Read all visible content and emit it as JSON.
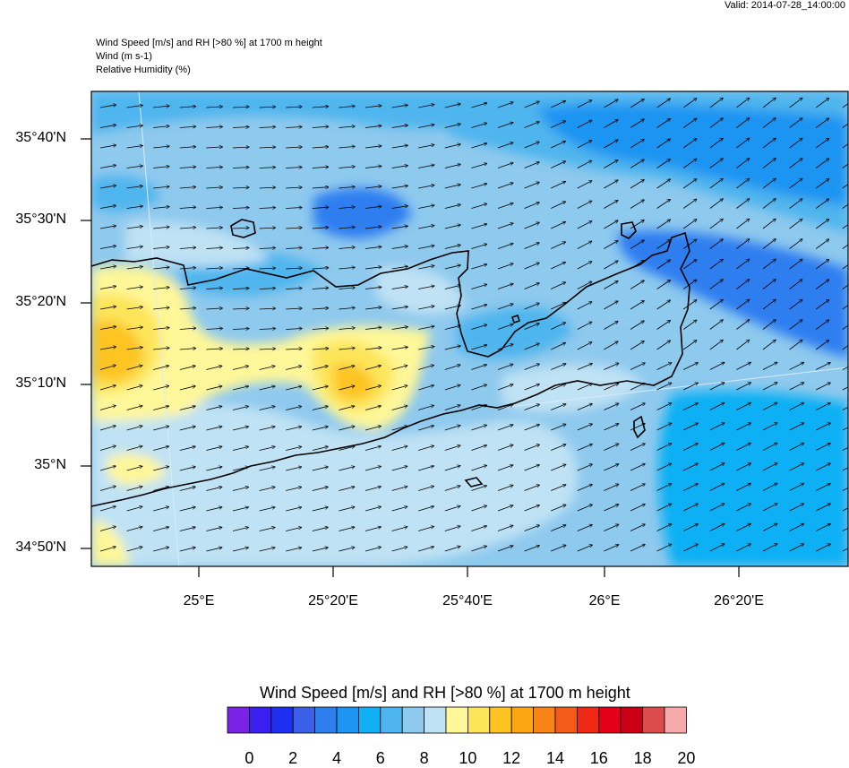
{
  "header": {
    "valid": "Valid: 2014-07-28_14:00:00",
    "title_line1": "Wind Speed [m/s] and RH [>80 %] at 1700 m height",
    "title_line2": "Wind   (m s-1)",
    "title_line3": "Relative Humidity   (%)"
  },
  "axes": {
    "lat_labels": [
      "35°40'N",
      "35°30'N",
      "35°20'N",
      "35°10'N",
      "35°N",
      "34°50'N"
    ],
    "lon_labels": [
      "25°E",
      "25°20'E",
      "25°40'E",
      "26°E",
      "26°20'E"
    ]
  },
  "legend": {
    "title": "Wind Speed [m/s] and RH [>80 %] at 1700 m height",
    "tick_labels": [
      "0",
      "2",
      "4",
      "6",
      "8",
      "10",
      "12",
      "14",
      "16",
      "18",
      "20"
    ],
    "colors": [
      "#7a22e6",
      "#3a1ff0",
      "#1e2ff0",
      "#3b5fe6",
      "#2f7ef0",
      "#1e94f2",
      "#10b0f4",
      "#4fb5ee",
      "#8ec9ee",
      "#bfe2f4",
      "#fff799",
      "#fde55a",
      "#fdc424",
      "#fba612",
      "#f88418",
      "#f45a18",
      "#ee2a16",
      "#e5001a",
      "#c90016",
      "#dc4c4c",
      "#f6aaaa"
    ]
  },
  "map": {
    "ocean_color": "#8ec9ee",
    "region": "Crete, Greece"
  }
}
